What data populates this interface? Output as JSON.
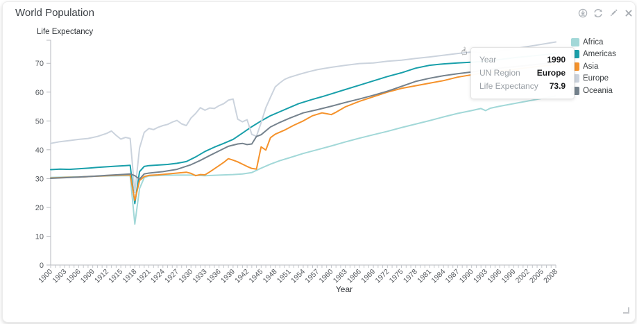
{
  "window": {
    "title": "World Population"
  },
  "toolbar": {
    "buttons": [
      {
        "icon": "download"
      },
      {
        "icon": "refresh"
      },
      {
        "icon": "edit"
      },
      {
        "icon": "close"
      }
    ]
  },
  "cursor_icon": {
    "glyph": "☝"
  },
  "tooltip": {
    "rows": [
      {
        "label": "Year",
        "value": "1990"
      },
      {
        "label": "UN Region",
        "value": "Europe"
      },
      {
        "label": "Life Expectancy",
        "value": "73.9"
      }
    ]
  },
  "chart_data": {
    "type": "line",
    "title": "World Population",
    "xlabel": "Year",
    "ylabel": "Life Expectancy",
    "xlim": [
      1900,
      2008
    ],
    "ylim": [
      0,
      78
    ],
    "grid": false,
    "legend_position": "top-right",
    "y_ticks": [
      0,
      10,
      20,
      30,
      40,
      50,
      60,
      70
    ],
    "x_tick_labels": [
      1900,
      1903,
      1906,
      1909,
      1912,
      1915,
      1918,
      1921,
      1924,
      1927,
      1930,
      1933,
      1936,
      1939,
      1942,
      1945,
      1948,
      1951,
      1954,
      1957,
      1960,
      1963,
      1966,
      1969,
      1972,
      1975,
      1978,
      1981,
      1984,
      1987,
      1990,
      1993,
      1996,
      1999,
      2002,
      2005,
      2008
    ],
    "series": [
      {
        "name": "Africa",
        "color": "#a2d8d8",
        "points": [
          [
            1900,
            30.4
          ],
          [
            1903,
            30.5
          ],
          [
            1906,
            30.6
          ],
          [
            1909,
            30.8
          ],
          [
            1912,
            30.9
          ],
          [
            1915,
            31.0
          ],
          [
            1917,
            31.0
          ],
          [
            1918,
            14.2
          ],
          [
            1919,
            26.5
          ],
          [
            1920,
            30.3
          ],
          [
            1921,
            30.9
          ],
          [
            1924,
            31.1
          ],
          [
            1927,
            31.2
          ],
          [
            1930,
            31.2
          ],
          [
            1933,
            31.0
          ],
          [
            1936,
            31.2
          ],
          [
            1939,
            31.4
          ],
          [
            1941,
            31.6
          ],
          [
            1943,
            32.1
          ],
          [
            1945,
            33.6
          ],
          [
            1947,
            35.0
          ],
          [
            1949,
            36.2
          ],
          [
            1951,
            37.2
          ],
          [
            1954,
            38.7
          ],
          [
            1957,
            40.0
          ],
          [
            1960,
            41.3
          ],
          [
            1963,
            42.7
          ],
          [
            1966,
            44.0
          ],
          [
            1969,
            45.2
          ],
          [
            1972,
            46.4
          ],
          [
            1975,
            47.7
          ],
          [
            1978,
            48.9
          ],
          [
            1981,
            50.1
          ],
          [
            1984,
            51.4
          ],
          [
            1987,
            52.6
          ],
          [
            1990,
            53.6
          ],
          [
            1992,
            54.3
          ],
          [
            1993,
            53.6
          ],
          [
            1994,
            54.4
          ],
          [
            1996,
            55.1
          ],
          [
            1999,
            56.0
          ],
          [
            2002,
            56.9
          ],
          [
            2005,
            57.8
          ],
          [
            2008,
            58.7
          ]
        ]
      },
      {
        "name": "Americas",
        "color": "#189faa",
        "points": [
          [
            1900,
            33.1
          ],
          [
            1902,
            33.3
          ],
          [
            1904,
            33.2
          ],
          [
            1906,
            33.4
          ],
          [
            1908,
            33.6
          ],
          [
            1910,
            33.9
          ],
          [
            1912,
            34.1
          ],
          [
            1914,
            34.3
          ],
          [
            1916,
            34.5
          ],
          [
            1917,
            34.6
          ],
          [
            1918,
            21.3
          ],
          [
            1919,
            32.4
          ],
          [
            1920,
            34.2
          ],
          [
            1921,
            34.5
          ],
          [
            1923,
            34.7
          ],
          [
            1925,
            34.9
          ],
          [
            1927,
            35.3
          ],
          [
            1929,
            35.9
          ],
          [
            1931,
            37.5
          ],
          [
            1933,
            39.4
          ],
          [
            1935,
            40.9
          ],
          [
            1937,
            42.2
          ],
          [
            1939,
            43.6
          ],
          [
            1941,
            45.8
          ],
          [
            1943,
            48.0
          ],
          [
            1945,
            50.0
          ],
          [
            1947,
            51.8
          ],
          [
            1949,
            53.2
          ],
          [
            1951,
            54.6
          ],
          [
            1953,
            56.0
          ],
          [
            1956,
            57.5
          ],
          [
            1958,
            58.4
          ],
          [
            1960,
            59.4
          ],
          [
            1963,
            60.9
          ],
          [
            1966,
            62.4
          ],
          [
            1969,
            63.9
          ],
          [
            1972,
            65.4
          ],
          [
            1975,
            66.7
          ],
          [
            1978,
            68.3
          ],
          [
            1981,
            69.3
          ],
          [
            1984,
            69.8
          ],
          [
            1987,
            70.1
          ],
          [
            1990,
            70.4
          ],
          [
            1993,
            70.7
          ],
          [
            1996,
            71.3
          ],
          [
            1999,
            71.9
          ],
          [
            2002,
            72.4
          ],
          [
            2005,
            72.9
          ],
          [
            2008,
            73.4
          ]
        ]
      },
      {
        "name": "Asia",
        "color": "#f5922b",
        "points": [
          [
            1900,
            30.2
          ],
          [
            1903,
            30.4
          ],
          [
            1906,
            30.5
          ],
          [
            1909,
            30.8
          ],
          [
            1912,
            31.0
          ],
          [
            1915,
            31.2
          ],
          [
            1917,
            31.3
          ],
          [
            1918,
            22.4
          ],
          [
            1919,
            29.3
          ],
          [
            1920,
            30.7
          ],
          [
            1921,
            31.1
          ],
          [
            1923,
            31.3
          ],
          [
            1925,
            31.6
          ],
          [
            1927,
            31.9
          ],
          [
            1929,
            32.2
          ],
          [
            1930,
            31.8
          ],
          [
            1931,
            31.0
          ],
          [
            1932,
            31.4
          ],
          [
            1933,
            31.3
          ],
          [
            1934,
            32.3
          ],
          [
            1935,
            33.4
          ],
          [
            1936,
            34.5
          ],
          [
            1937,
            35.6
          ],
          [
            1938,
            36.9
          ],
          [
            1939,
            36.4
          ],
          [
            1940,
            35.8
          ],
          [
            1941,
            35.0
          ],
          [
            1942,
            34.2
          ],
          [
            1943,
            33.5
          ],
          [
            1944,
            33.3
          ],
          [
            1945,
            41.0
          ],
          [
            1946,
            39.9
          ],
          [
            1947,
            44.2
          ],
          [
            1948,
            45.4
          ],
          [
            1950,
            46.8
          ],
          [
            1952,
            48.5
          ],
          [
            1954,
            50.0
          ],
          [
            1956,
            51.8
          ],
          [
            1958,
            52.8
          ],
          [
            1959,
            52.5
          ],
          [
            1960,
            52.2
          ],
          [
            1961,
            53.0
          ],
          [
            1963,
            54.9
          ],
          [
            1966,
            56.8
          ],
          [
            1969,
            58.4
          ],
          [
            1972,
            60.0
          ],
          [
            1975,
            61.3
          ],
          [
            1978,
            62.2
          ],
          [
            1981,
            63.1
          ],
          [
            1984,
            64.0
          ],
          [
            1987,
            65.2
          ],
          [
            1990,
            66.0
          ],
          [
            1993,
            66.8
          ],
          [
            1996,
            67.3
          ],
          [
            1999,
            67.9
          ],
          [
            2002,
            68.5
          ],
          [
            2005,
            69.0
          ],
          [
            2008,
            69.6
          ]
        ]
      },
      {
        "name": "Europe",
        "color": "#cbd3dd",
        "points": [
          [
            1900,
            42.2
          ],
          [
            1902,
            42.8
          ],
          [
            1904,
            43.2
          ],
          [
            1906,
            43.6
          ],
          [
            1908,
            43.9
          ],
          [
            1910,
            44.6
          ],
          [
            1912,
            45.7
          ],
          [
            1913,
            46.5
          ],
          [
            1914,
            45.0
          ],
          [
            1915,
            43.7
          ],
          [
            1916,
            44.3
          ],
          [
            1917,
            43.9
          ],
          [
            1918,
            25.2
          ],
          [
            1919,
            40.6
          ],
          [
            1920,
            46.0
          ],
          [
            1921,
            47.4
          ],
          [
            1922,
            47.0
          ],
          [
            1923,
            47.8
          ],
          [
            1924,
            48.4
          ],
          [
            1925,
            48.8
          ],
          [
            1926,
            49.6
          ],
          [
            1927,
            50.2
          ],
          [
            1928,
            49.0
          ],
          [
            1929,
            48.4
          ],
          [
            1930,
            51.0
          ],
          [
            1931,
            52.6
          ],
          [
            1932,
            54.6
          ],
          [
            1933,
            53.7
          ],
          [
            1934,
            54.5
          ],
          [
            1935,
            54.3
          ],
          [
            1936,
            55.3
          ],
          [
            1937,
            56.0
          ],
          [
            1938,
            57.2
          ],
          [
            1939,
            57.6
          ],
          [
            1940,
            50.6
          ],
          [
            1941,
            49.7
          ],
          [
            1942,
            50.4
          ],
          [
            1943,
            45.3
          ],
          [
            1944,
            44.7
          ],
          [
            1945,
            49.4
          ],
          [
            1946,
            54.6
          ],
          [
            1947,
            58.2
          ],
          [
            1948,
            61.8
          ],
          [
            1949,
            63.2
          ],
          [
            1950,
            64.4
          ],
          [
            1951,
            65.1
          ],
          [
            1953,
            66.1
          ],
          [
            1955,
            67.0
          ],
          [
            1957,
            67.8
          ],
          [
            1960,
            68.6
          ],
          [
            1963,
            69.3
          ],
          [
            1966,
            69.9
          ],
          [
            1969,
            70.1
          ],
          [
            1972,
            70.7
          ],
          [
            1975,
            71.1
          ],
          [
            1978,
            71.7
          ],
          [
            1981,
            72.2
          ],
          [
            1984,
            72.8
          ],
          [
            1987,
            73.4
          ],
          [
            1990,
            73.9
          ],
          [
            1992,
            73.6
          ],
          [
            1994,
            73.8
          ],
          [
            1996,
            74.3
          ],
          [
            1999,
            75.0
          ],
          [
            2002,
            75.8
          ],
          [
            2005,
            76.6
          ],
          [
            2008,
            77.4
          ]
        ]
      },
      {
        "name": "Oceania",
        "color": "#75828d",
        "points": [
          [
            1900,
            30.1
          ],
          [
            1903,
            30.3
          ],
          [
            1906,
            30.5
          ],
          [
            1909,
            30.8
          ],
          [
            1912,
            31.1
          ],
          [
            1915,
            31.4
          ],
          [
            1917,
            31.6
          ],
          [
            1918,
            31.0
          ],
          [
            1919,
            29.8
          ],
          [
            1920,
            31.6
          ],
          [
            1921,
            31.9
          ],
          [
            1924,
            32.4
          ],
          [
            1927,
            33.2
          ],
          [
            1930,
            34.8
          ],
          [
            1932,
            36.3
          ],
          [
            1934,
            38.0
          ],
          [
            1936,
            39.6
          ],
          [
            1938,
            41.2
          ],
          [
            1940,
            42.0
          ],
          [
            1941,
            42.2
          ],
          [
            1942,
            41.8
          ],
          [
            1943,
            42.0
          ],
          [
            1944,
            44.6
          ],
          [
            1945,
            45.2
          ],
          [
            1947,
            47.9
          ],
          [
            1949,
            49.5
          ],
          [
            1951,
            50.9
          ],
          [
            1954,
            52.8
          ],
          [
            1957,
            53.9
          ],
          [
            1960,
            55.1
          ],
          [
            1963,
            56.4
          ],
          [
            1966,
            57.6
          ],
          [
            1969,
            58.9
          ],
          [
            1972,
            60.3
          ],
          [
            1975,
            62.0
          ],
          [
            1978,
            63.7
          ],
          [
            1981,
            64.8
          ],
          [
            1984,
            65.7
          ],
          [
            1987,
            66.4
          ],
          [
            1990,
            67.0
          ],
          [
            1993,
            67.7
          ],
          [
            1996,
            68.3
          ],
          [
            1999,
            68.8
          ],
          [
            2002,
            69.3
          ],
          [
            2005,
            69.8
          ],
          [
            2008,
            70.3
          ]
        ]
      }
    ]
  }
}
